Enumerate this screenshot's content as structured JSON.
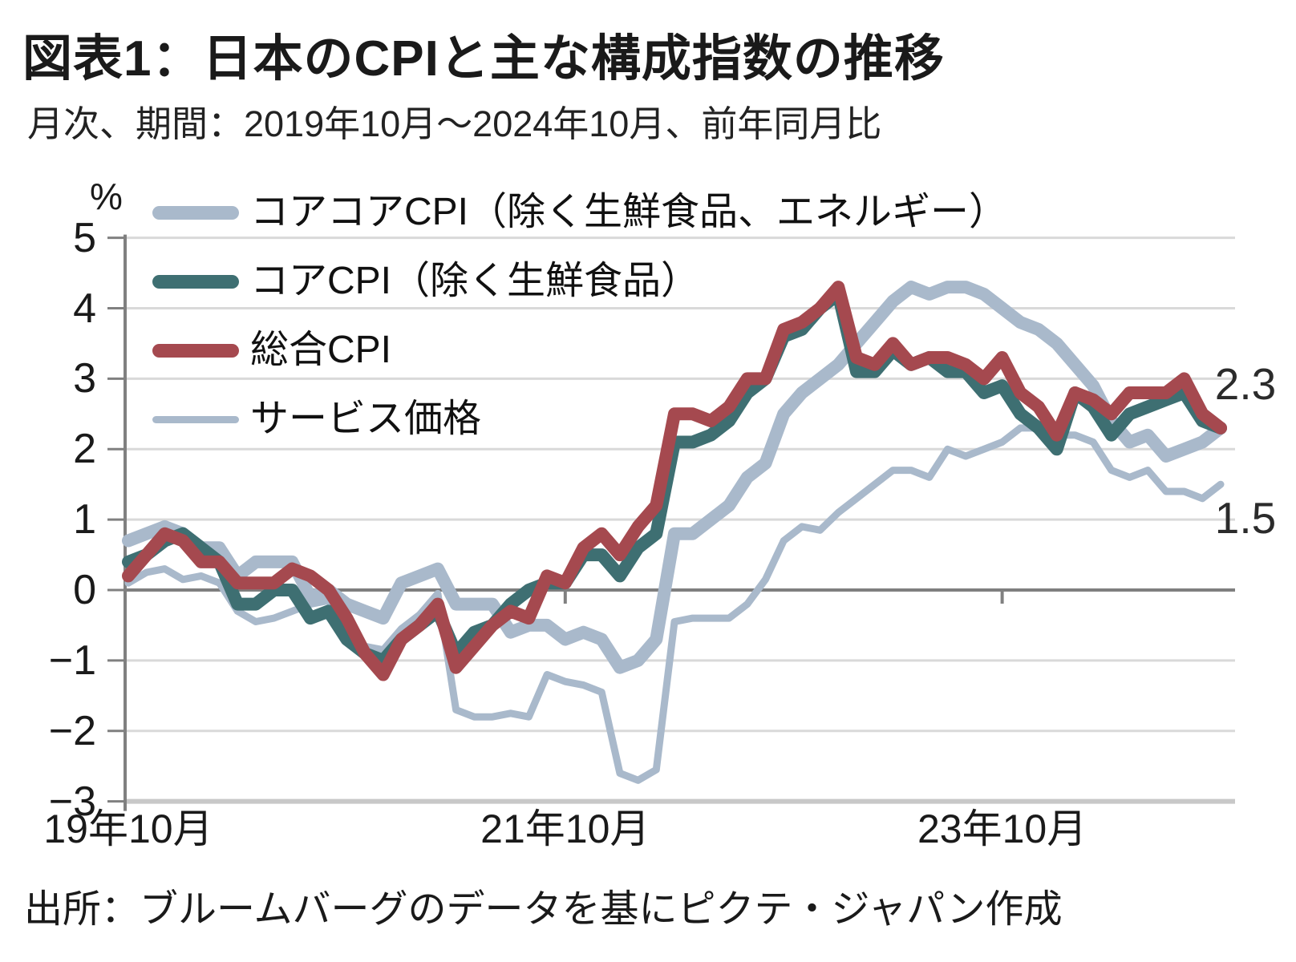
{
  "header": {
    "title": "図表1：日本のCPIと主な構成指数の推移",
    "subtitle": "月次、期間：2019年10月～2024年10月、前年同月比"
  },
  "footer": {
    "source": "出所：ブルームバーグのデータを基にピクテ・ジャパン作成"
  },
  "colors": {
    "headline_red": "#A5494F",
    "core_teal": "#3E6F72",
    "light_blue": "#A9B9CB",
    "gridline": "#D9D9D9",
    "zero_line": "#7F7F7F",
    "axis": "#808080",
    "bottom_border": "#C8C8C8",
    "text": "#1A1A1A"
  },
  "legend": [
    {
      "label": "コアコアCPI（除く生鮮食品、エネルギー）",
      "color": "#A9B9CB",
      "thickness": 17
    },
    {
      "label": "コアCPI（除く生鮮食品）",
      "color": "#3E6F72",
      "thickness": 17
    },
    {
      "label": "総合CPI",
      "color": "#A5494F",
      "thickness": 17
    },
    {
      "label": "サービス価格",
      "color": "#A9B9CB",
      "thickness": 9
    }
  ],
  "annotations": {
    "cpi_end_value": "2.3",
    "services_end_value": "1.5"
  },
  "y_axis": {
    "unit": "%",
    "ticks": [
      {
        "v": 5,
        "label": "5"
      },
      {
        "v": 4,
        "label": "4"
      },
      {
        "v": 3,
        "label": "3"
      },
      {
        "v": 2,
        "label": "2"
      },
      {
        "v": 1,
        "label": "1"
      },
      {
        "v": 0,
        "label": "0"
      },
      {
        "v": -1,
        "label": "−1"
      },
      {
        "v": -2,
        "label": "−2"
      },
      {
        "v": -3,
        "label": "−3"
      }
    ]
  },
  "x_axis": {
    "labels": [
      {
        "month_index": 0,
        "label": "19年10月"
      },
      {
        "month_index": 24,
        "label": "21年10月"
      },
      {
        "month_index": 48,
        "label": "23年10月"
      }
    ]
  },
  "chart_data": {
    "type": "line",
    "title": "図表1：日本のCPIと主な構成指数の推移",
    "x_start": "2019-10",
    "x_end": "2024-10",
    "frequency": "monthly",
    "n_points": 61,
    "ylim": [
      -3,
      5
    ],
    "ylabel": "%",
    "grid": "horizontal",
    "legend_position": "inside-top-left",
    "series": [
      {
        "name": "コアコアCPI（除く生鮮食品、エネルギー）",
        "color": "#A9B9CB",
        "stroke_width": 16,
        "values": [
          0.7,
          0.8,
          0.9,
          0.8,
          0.6,
          0.6,
          0.2,
          0.4,
          0.4,
          0.4,
          -0.1,
          0.0,
          -0.2,
          -0.3,
          -0.4,
          0.1,
          0.2,
          0.3,
          -0.2,
          -0.2,
          -0.2,
          -0.6,
          -0.5,
          -0.5,
          -0.7,
          -0.6,
          -0.7,
          -1.1,
          -1.0,
          -0.7,
          0.8,
          0.8,
          1.0,
          1.2,
          1.6,
          1.8,
          2.5,
          2.8,
          3.0,
          3.2,
          3.5,
          3.8,
          4.1,
          4.3,
          4.2,
          4.3,
          4.3,
          4.2,
          4.0,
          3.8,
          3.7,
          3.5,
          3.2,
          2.9,
          2.4,
          2.1,
          2.2,
          1.9,
          2.0,
          2.1,
          2.3
        ]
      },
      {
        "name": "コアCPI（除く生鮮食品）",
        "color": "#3E6F72",
        "stroke_width": 16,
        "values": [
          0.4,
          0.5,
          0.7,
          0.8,
          0.6,
          0.4,
          -0.2,
          -0.2,
          0.0,
          0.0,
          -0.4,
          -0.3,
          -0.7,
          -0.9,
          -1.0,
          -0.7,
          -0.5,
          -0.3,
          -0.9,
          -0.6,
          -0.5,
          -0.2,
          0.0,
          0.1,
          0.1,
          0.5,
          0.5,
          0.2,
          0.6,
          0.8,
          2.1,
          2.1,
          2.2,
          2.4,
          2.8,
          3.0,
          3.6,
          3.7,
          4.0,
          4.2,
          3.1,
          3.1,
          3.4,
          3.2,
          3.3,
          3.1,
          3.1,
          2.8,
          2.9,
          2.5,
          2.3,
          2.0,
          2.8,
          2.6,
          2.2,
          2.5,
          2.6,
          2.7,
          2.8,
          2.4,
          2.3
        ]
      },
      {
        "name": "総合CPI",
        "color": "#A5494F",
        "stroke_width": 16,
        "values": [
          0.2,
          0.5,
          0.8,
          0.7,
          0.4,
          0.4,
          0.1,
          0.1,
          0.1,
          0.3,
          0.2,
          0.0,
          -0.4,
          -0.9,
          -1.2,
          -0.7,
          -0.5,
          -0.2,
          -1.1,
          -0.8,
          -0.5,
          -0.3,
          -0.4,
          0.2,
          0.1,
          0.6,
          0.8,
          0.5,
          0.9,
          1.2,
          2.5,
          2.5,
          2.4,
          2.6,
          3.0,
          3.0,
          3.7,
          3.8,
          4.0,
          4.3,
          3.3,
          3.2,
          3.5,
          3.2,
          3.3,
          3.3,
          3.2,
          3.0,
          3.3,
          2.8,
          2.6,
          2.2,
          2.8,
          2.7,
          2.5,
          2.8,
          2.8,
          2.8,
          3.0,
          2.5,
          2.3
        ]
      },
      {
        "name": "サービス価格",
        "color": "#A9B9CB",
        "stroke_width": 9,
        "values": [
          0.1,
          0.25,
          0.3,
          0.15,
          0.2,
          0.1,
          -0.3,
          -0.45,
          -0.4,
          -0.3,
          -0.2,
          -0.15,
          -0.6,
          -0.8,
          -0.85,
          -0.55,
          -0.35,
          -0.05,
          -1.7,
          -1.8,
          -1.8,
          -1.75,
          -1.8,
          -1.2,
          -1.3,
          -1.35,
          -1.45,
          -2.6,
          -2.7,
          -2.55,
          -0.45,
          -0.4,
          -0.4,
          -0.4,
          -0.2,
          0.15,
          0.7,
          0.9,
          0.85,
          1.1,
          1.3,
          1.5,
          1.7,
          1.7,
          1.6,
          2.0,
          1.9,
          2.0,
          2.1,
          2.3,
          2.3,
          2.2,
          2.2,
          2.1,
          1.7,
          1.6,
          1.7,
          1.4,
          1.4,
          1.3,
          1.5
        ]
      }
    ]
  }
}
